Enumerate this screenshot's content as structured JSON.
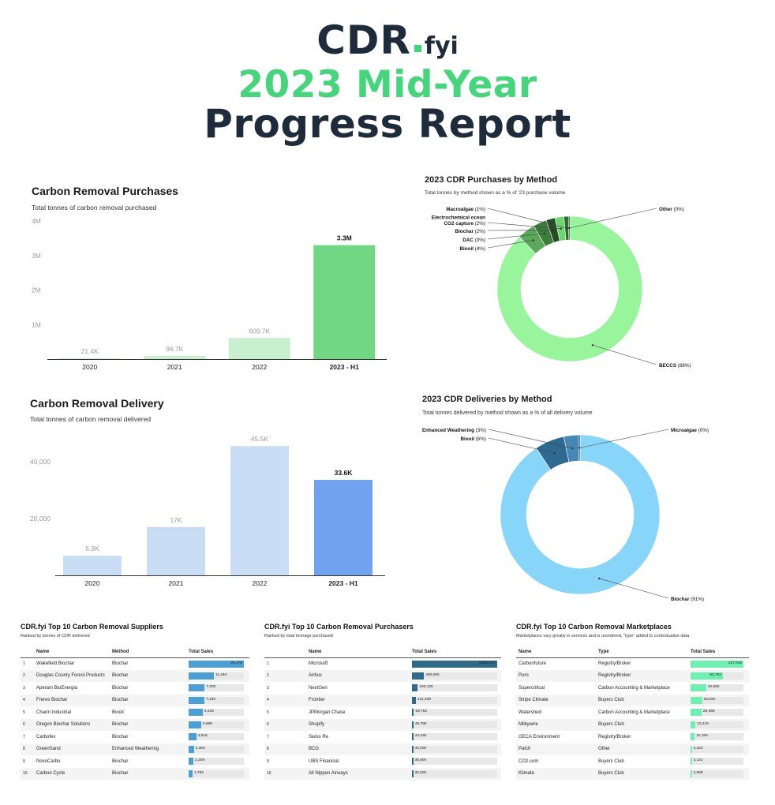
{
  "header": {
    "logo_main": "CDR",
    "logo_suffix": "fyi",
    "headline_line1": "2023 Mid-Year",
    "headline_line2": "Progress Report"
  },
  "colors": {
    "brand_green": "#45d67b",
    "navy": "#1d2b3a",
    "purch_light": "#c8f0cf",
    "purch_dark": "#72d782",
    "deliv_light": "#c9def5",
    "deliv_dark": "#6fa2ef",
    "supplier_bar": "#4a9fd5",
    "purchaser_bar": "#2e6a8a",
    "marketplace_bar": "#6ef0b0"
  },
  "chart_data": [
    {
      "type": "bar",
      "title": "Carbon Removal Purchases",
      "subtitle": "Total tonnes of carbon removal purchased",
      "categories": [
        "2020",
        "2021",
        "2022",
        "2023 - H1"
      ],
      "values": [
        21400,
        96700,
        609700,
        3300000
      ],
      "data_labels": [
        "21.4K",
        "96.7K",
        "609.7K",
        "3.3M"
      ],
      "y_ticks": [
        1000000,
        2000000,
        3000000,
        4000000
      ],
      "y_tick_labels": [
        "1M",
        "2M",
        "3M",
        "4M"
      ],
      "ylim": [
        0,
        4000000
      ],
      "grid": false
    },
    {
      "type": "pie",
      "title": "2023 CDR Purchases by Method",
      "subtitle": "Total tonnes by method shown as a % of '23 purchase volume",
      "donut": true,
      "slices": [
        {
          "name": "BECCS",
          "pct_label": "(88%)",
          "value": 88,
          "color": "#98f59c"
        },
        {
          "name": "Biooil",
          "pct_label": "(4%)",
          "value": 4,
          "color": "#5aa85a"
        },
        {
          "name": "DAC",
          "pct_label": "(3%)",
          "value": 3,
          "color": "#3b7d3b"
        },
        {
          "name": "Biochar",
          "pct_label": "(2%)",
          "value": 2,
          "color": "#244d24"
        },
        {
          "name": "Electrochemical ocean CO2 capture",
          "pct_label": "(2%)",
          "value": 2,
          "color": "#6ed66e"
        },
        {
          "name": "Macroalgae",
          "pct_label": "(1%)",
          "value": 1,
          "color": "#2f6d2f"
        },
        {
          "name": "Other",
          "pct_label": "(0%)",
          "value": 0.3,
          "color": "#1f3f1f"
        }
      ],
      "label_lines": {
        "Electrochemical ocean CO2 capture": [
          "Electrochemical ocean",
          "CO2 capture"
        ]
      }
    },
    {
      "type": "bar",
      "title": "Carbon Removal Delivery",
      "subtitle": "Total tonnes of carbon removal delivered",
      "categories": [
        "2020",
        "2021",
        "2022",
        "2023 - H1"
      ],
      "values": [
        6900,
        17000,
        45500,
        33600
      ],
      "data_labels": [
        "6.9K",
        "17K",
        "45.5K",
        "33.6K"
      ],
      "y_ticks": [
        20000,
        40000
      ],
      "y_tick_labels": [
        "20,000",
        "40,000"
      ],
      "ylim": [
        0,
        50000
      ],
      "grid": false
    },
    {
      "type": "pie",
      "title": "2023 CDR Deliveries by Method",
      "subtitle": "Total tonnes delivered by method shown as a % of all delivery volume",
      "donut": true,
      "slices": [
        {
          "name": "Biochar",
          "pct_label": "(91%)",
          "value": 91,
          "color": "#87d5f8"
        },
        {
          "name": "Biooil",
          "pct_label": "(6%)",
          "value": 6,
          "color": "#2e6a8f"
        },
        {
          "name": "Enhanced Weathering",
          "pct_label": "(3%)",
          "value": 3,
          "color": "#4488b5"
        },
        {
          "name": "Microalgae",
          "pct_label": "(0%)",
          "value": 0.3,
          "color": "#1e4a66"
        }
      ]
    }
  ],
  "tables": {
    "suppliers": {
      "title": "CDR.fyi Top 10 Carbon Removal Suppliers",
      "subtitle": "Ranked by tonnes of CDR delivered",
      "columns": [
        "",
        "Name",
        "Method",
        "Total Sales"
      ],
      "max": 25170,
      "rows": [
        {
          "rank": "1",
          "name": "Wakefield Biochar",
          "type": "Biochar",
          "value": 25170,
          "label": "25,170"
        },
        {
          "rank": "2",
          "name": "Douglas County Forest Products",
          "type": "Biochar",
          "value": 11493,
          "label": "11,493"
        },
        {
          "rank": "3",
          "name": "Aperam BioEnergia",
          "type": "Biochar",
          "value": 7300,
          "label": "7,300"
        },
        {
          "rank": "4",
          "name": "Freres Biochar",
          "type": "Biochar",
          "value": 7195,
          "label": "7,195"
        },
        {
          "rank": "5",
          "name": "Charm Industrial",
          "type": "Biooil",
          "value": 6416,
          "label": "6,416"
        },
        {
          "rank": "6",
          "name": "Oregon Biochar Solutions",
          "type": "Biochar",
          "value": 5689,
          "label": "5,689"
        },
        {
          "rank": "7",
          "name": "Carbofex",
          "type": "Biochar",
          "value": 3516,
          "label": "3,516"
        },
        {
          "rank": "8",
          "name": "GreenSand",
          "type": "Enhanced Weathering",
          "value": 2383,
          "label": "2,383"
        },
        {
          "rank": "9",
          "name": "NovoCarbo",
          "type": "Biochar",
          "value": 2209,
          "label": "2,209"
        },
        {
          "rank": "10",
          "name": "Carbon Cycle",
          "type": "Biochar",
          "value": 1782,
          "label": "1,782"
        }
      ]
    },
    "purchasers": {
      "title": "CDR.fyi Top 10 Carbon Removal Purchasers",
      "subtitle": "Ranked by total tonnage purchased",
      "columns": [
        "",
        "Name",
        "Total Sales"
      ],
      "max": 2819627,
      "rows": [
        {
          "rank": "1",
          "name": "Microsoft",
          "value": 2819627,
          "label": "2,819,627"
        },
        {
          "rank": "2",
          "name": "Airbus",
          "value": 400000,
          "label": "400,000"
        },
        {
          "rank": "3",
          "name": "NextGen",
          "value": 193125,
          "label": "193,125"
        },
        {
          "rank": "4",
          "name": "Frontier",
          "value": 121409,
          "label": "121,409"
        },
        {
          "rank": "5",
          "name": "JPMorgan Chase",
          "value": 63752,
          "label": "63,752"
        },
        {
          "rank": "6",
          "name": "Shopify",
          "value": 46785,
          "label": "46,785"
        },
        {
          "rank": "7",
          "name": "Swiss Re",
          "value": 44035,
          "label": "44,035"
        },
        {
          "rank": "8",
          "name": "BCG",
          "value": 40000,
          "label": "40,000"
        },
        {
          "rank": "9",
          "name": "UBS Financial",
          "value": 39800,
          "label": "39,800"
        },
        {
          "rank": "10",
          "name": "All Nippon Airways",
          "value": 30000,
          "label": "30,000"
        }
      ]
    },
    "marketplaces": {
      "title": "CDR.fyi Top 10 Carbon Removal Marketplaces",
      "subtitle": "Marketplaces vary greatly in services and is unordered, \"type\" added to contextualize data",
      "columns": [
        "Name",
        "Type",
        "Total Sales"
      ],
      "max": 137045,
      "rows": [
        {
          "name": "Carbonfuture",
          "type": "Registry/Broker",
          "value": 137045,
          "label": "137,045"
        },
        {
          "name": "Puro",
          "type": "Registry/Broker",
          "value": 83752,
          "label": "83,752"
        },
        {
          "name": "Supercritical",
          "type": "Carbon Accounting & Marketplace",
          "value": 40682,
          "label": "40,682"
        },
        {
          "name": "Stripe Climate",
          "type": "Buyers Club",
          "value": 29840,
          "label": "29,840"
        },
        {
          "name": "Watershed",
          "type": "Carbon Accounting & Marketplace",
          "value": 28486,
          "label": "28,486"
        },
        {
          "name": "Milkywire",
          "type": "Buyers Club",
          "value": 12219,
          "label": "12,219"
        },
        {
          "name": "GECA Environment",
          "type": "Registry/Broker",
          "value": 10150,
          "label": "10,150"
        },
        {
          "name": "Patch",
          "type": "Other",
          "value": 3223,
          "label": "3,223"
        },
        {
          "name": "CO2.com",
          "type": "Buyers Club",
          "value": 3131,
          "label": "3,131"
        },
        {
          "name": "Klimate",
          "type": "Buyers Club",
          "value": 2689,
          "label": "2,689"
        }
      ]
    }
  }
}
